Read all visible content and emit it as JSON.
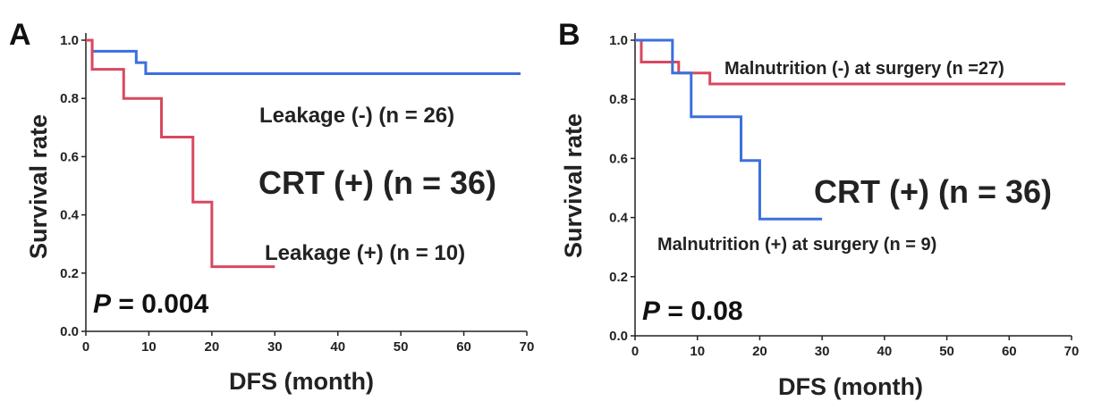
{
  "chart_data": [
    {
      "panel": "A",
      "type": "line",
      "xlabel": "DFS (month)",
      "ylabel": "Survival rate",
      "xlim": [
        0,
        70
      ],
      "ylim": [
        0,
        1.0
      ],
      "xticks": [
        "0",
        "10",
        "20",
        "30",
        "40",
        "50",
        "60",
        "70"
      ],
      "yticks": [
        "0.0",
        "0.2",
        "0.4",
        "0.6",
        "0.8",
        "1.0"
      ],
      "annotation": "CRT (+) (n = 36)",
      "pvalue": {
        "p": "P",
        "rest": " = 0.004"
      },
      "series": [
        {
          "name": "Leakage (-)  (n = 26)",
          "color": "#3b6fe0",
          "steps": [
            [
              0,
              1.0
            ],
            [
              1,
              0.962
            ],
            [
              8,
              0.923
            ],
            [
              9.5,
              0.885
            ],
            [
              69,
              0.885
            ]
          ]
        },
        {
          "name": "Leakage (+) (n = 10)",
          "color": "#d9485e",
          "steps": [
            [
              0,
              1.0
            ],
            [
              1,
              0.9
            ],
            [
              6,
              0.8
            ],
            [
              12,
              0.667
            ],
            [
              17,
              0.444
            ],
            [
              20,
              0.222
            ],
            [
              30,
              0.222
            ]
          ]
        }
      ]
    },
    {
      "panel": "B",
      "type": "line",
      "xlabel": "DFS (month)",
      "ylabel": "Survival rate",
      "xlim": [
        0,
        70
      ],
      "ylim": [
        0,
        1.0
      ],
      "xticks": [
        "0",
        "10",
        "20",
        "30",
        "40",
        "50",
        "60",
        "70"
      ],
      "yticks": [
        "0.0",
        "0.2",
        "0.4",
        "0.6",
        "0.8",
        "1.0"
      ],
      "annotation": "CRT (+) (n = 36)",
      "pvalue": {
        "p": "P",
        "rest": " = 0.08"
      },
      "series": [
        {
          "name": "Malnutrition (-) at surgery (n =27)",
          "color": "#d9485e",
          "steps": [
            [
              0,
              1.0
            ],
            [
              1,
              0.926
            ],
            [
              7,
              0.889
            ],
            [
              12,
              0.852
            ],
            [
              69,
              0.852
            ]
          ]
        },
        {
          "name": "Malnutrition (+) at surgery (n = 9)",
          "color": "#3b6fe0",
          "steps": [
            [
              0,
              1.0
            ],
            [
              6,
              0.889
            ],
            [
              9,
              0.741
            ],
            [
              17,
              0.593
            ],
            [
              20,
              0.395
            ],
            [
              30,
              0.395
            ]
          ]
        }
      ]
    }
  ]
}
